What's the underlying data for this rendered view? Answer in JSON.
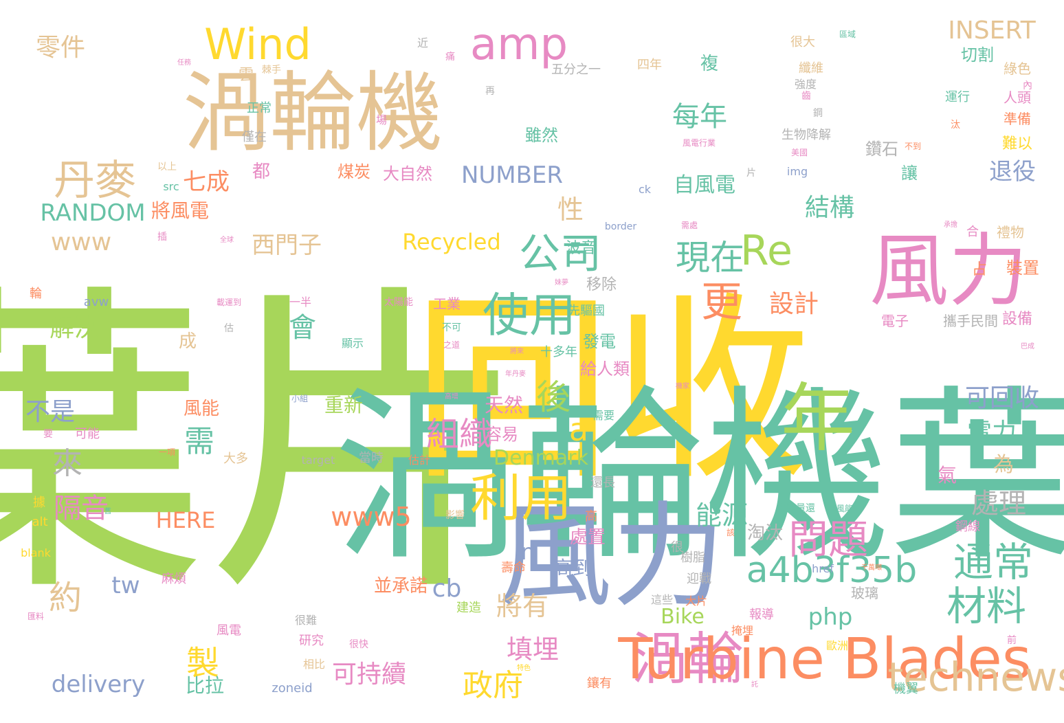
{
  "palette": {
    "green": "#a7d65a",
    "teal": "#66c2a5",
    "yellow": "#ffd92f",
    "orange": "#fc8d62",
    "blue": "#8da0cb",
    "pink": "#e78ac3",
    "tan": "#e5c494",
    "gray": "#b3b3b3"
  },
  "words": [
    {
      "text": "葉片",
      "color": "green"
    },
    {
      "text": "回收",
      "color": "yellow"
    },
    {
      "text": "渦輪機葉片",
      "color": "teal"
    },
    {
      "text": "渦輪機",
      "color": "tan"
    },
    {
      "text": "年",
      "color": "green"
    },
    {
      "text": "風力",
      "color": "blue"
    },
    {
      "text": "風力",
      "color": "pink"
    },
    {
      "text": "渦輪",
      "color": "pink"
    },
    {
      "text": "Turbine Blades",
      "color": "orange"
    },
    {
      "text": "Wind",
      "color": "yellow"
    },
    {
      "text": "amp",
      "color": "pink"
    },
    {
      "text": "丹麥",
      "color": "tan"
    },
    {
      "text": "利用",
      "color": "yellow"
    },
    {
      "text": "使用",
      "color": "teal"
    },
    {
      "text": "公司",
      "color": "teal"
    },
    {
      "text": "更",
      "color": "orange"
    },
    {
      "text": "Re",
      "color": "green"
    },
    {
      "text": "現在",
      "color": "teal"
    },
    {
      "text": "問題",
      "color": "pink"
    },
    {
      "text": "材料",
      "color": "teal"
    },
    {
      "text": "通常",
      "color": "teal"
    },
    {
      "text": "technews",
      "color": "tan"
    },
    {
      "text": "政府",
      "color": "yellow"
    },
    {
      "text": "製",
      "color": "yellow"
    },
    {
      "text": "約",
      "color": "tan"
    },
    {
      "text": "後",
      "color": "green"
    },
    {
      "text": "組織",
      "color": "pink"
    },
    {
      "text": "a",
      "color": "yellow"
    },
    {
      "text": "a4b3f35b",
      "color": "teal"
    },
    {
      "text": "www5",
      "color": "orange"
    },
    {
      "text": "www",
      "color": "tan"
    },
    {
      "text": "INSERT",
      "color": "tan"
    },
    {
      "text": "RANDOM",
      "color": "teal"
    },
    {
      "text": "NUMBER",
      "color": "blue"
    },
    {
      "text": "delivery",
      "color": "blue"
    },
    {
      "text": "Recycled",
      "color": "yellow"
    },
    {
      "text": "Denmark",
      "color": "green"
    },
    {
      "text": "HERE",
      "color": "orange"
    },
    {
      "text": "php",
      "color": "teal"
    },
    {
      "text": "tw",
      "color": "blue"
    },
    {
      "text": "cb",
      "color": "blue"
    },
    {
      "text": "n",
      "color": "blue"
    },
    {
      "text": "Bike",
      "color": "green"
    },
    {
      "text": "重新",
      "color": "green"
    },
    {
      "text": "零件",
      "color": "tan"
    },
    {
      "text": "解決",
      "color": "green"
    },
    {
      "text": "不是",
      "color": "blue"
    },
    {
      "text": "來",
      "color": "gray"
    },
    {
      "text": "需",
      "color": "teal"
    },
    {
      "text": "會",
      "color": "teal"
    },
    {
      "text": "性",
      "color": "tan"
    },
    {
      "text": "每年",
      "color": "teal"
    },
    {
      "text": "結構",
      "color": "teal"
    },
    {
      "text": "退役",
      "color": "blue"
    },
    {
      "text": "可回收",
      "color": "blue"
    },
    {
      "text": "電力",
      "color": "teal"
    },
    {
      "text": "處理",
      "color": "gray"
    },
    {
      "text": "能源",
      "color": "teal"
    },
    {
      "text": "將有",
      "color": "tan"
    },
    {
      "text": "填埋",
      "color": "pink"
    },
    {
      "text": "可持續",
      "color": "pink"
    },
    {
      "text": "西門子",
      "color": "tan"
    },
    {
      "text": "自風電",
      "color": "teal"
    },
    {
      "text": "煤炭",
      "color": "orange"
    },
    {
      "text": "大自然",
      "color": "pink"
    },
    {
      "text": "都",
      "color": "pink"
    },
    {
      "text": "七成",
      "color": "orange"
    },
    {
      "text": "雖然",
      "color": "teal"
    },
    {
      "text": "複",
      "color": "teal"
    },
    {
      "text": "設計",
      "color": "orange"
    },
    {
      "text": "天然",
      "color": "pink"
    },
    {
      "text": "容易",
      "color": "pink"
    },
    {
      "text": "高到",
      "color": "blue"
    },
    {
      "text": "並承諾",
      "color": "orange"
    },
    {
      "text": "比拉",
      "color": "teal"
    },
    {
      "text": "發電",
      "color": "teal"
    },
    {
      "text": "給人類",
      "color": "pink"
    },
    {
      "text": "成",
      "color": "tan"
    },
    {
      "text": "隔音",
      "color": "pink"
    },
    {
      "text": "為",
      "color": "tan"
    },
    {
      "text": "氣",
      "color": "pink"
    },
    {
      "text": "淘汰",
      "color": "gray"
    },
    {
      "text": "切割",
      "color": "teal"
    },
    {
      "text": "綠色",
      "color": "tan"
    },
    {
      "text": "將風電",
      "color": "orange"
    },
    {
      "text": "風能",
      "color": "orange"
    },
    {
      "text": "處置",
      "color": "pink"
    },
    {
      "text": "波音",
      "color": "teal"
    },
    {
      "text": "移除",
      "color": "gray"
    },
    {
      "text": "工業",
      "color": "pink"
    },
    {
      "text": "先驅國",
      "color": "teal"
    },
    {
      "text": "設備",
      "color": "pink"
    },
    {
      "text": "攜手民間",
      "color": "gray"
    },
    {
      "text": "電子",
      "color": "pink"
    },
    {
      "text": "占",
      "color": "orange"
    },
    {
      "text": "裝置",
      "color": "orange"
    },
    {
      "text": "禮物",
      "color": "tan"
    },
    {
      "text": "難以",
      "color": "yellow"
    },
    {
      "text": "準備",
      "color": "orange"
    },
    {
      "text": "人頭",
      "color": "pink"
    },
    {
      "text": "讓",
      "color": "teal"
    },
    {
      "text": "鑽石",
      "color": "gray"
    },
    {
      "text": "生物降解",
      "color": "gray"
    },
    {
      "text": "鋼線",
      "color": "pink"
    },
    {
      "text": "玻璃",
      "color": "gray"
    },
    {
      "text": "迎戰",
      "color": "gray"
    },
    {
      "text": "樹脂",
      "color": "gray"
    },
    {
      "text": "壽命",
      "color": "orange"
    },
    {
      "text": "報導",
      "color": "pink"
    },
    {
      "text": "大片",
      "color": "orange"
    },
    {
      "text": "這些",
      "color": "gray"
    },
    {
      "text": "建造",
      "color": "green"
    },
    {
      "text": "掩埋",
      "color": "orange"
    },
    {
      "text": "麻煩",
      "color": "pink"
    },
    {
      "text": "很難",
      "color": "gray"
    },
    {
      "text": "風電",
      "color": "pink"
    },
    {
      "text": "研究",
      "color": "pink"
    },
    {
      "text": "很快",
      "color": "pink"
    },
    {
      "text": "相比",
      "color": "tan"
    },
    {
      "text": "鑲有",
      "color": "orange"
    },
    {
      "text": "機翼",
      "color": "teal"
    },
    {
      "text": "還長",
      "color": "gray"
    },
    {
      "text": "十多年",
      "color": "teal"
    },
    {
      "text": "四年",
      "color": "tan"
    },
    {
      "text": "強度",
      "color": "gray"
    },
    {
      "text": "纖維",
      "color": "tan"
    },
    {
      "text": "很大",
      "color": "tan"
    },
    {
      "text": "運行",
      "color": "teal"
    },
    {
      "text": "正常",
      "color": "teal"
    },
    {
      "text": "僅在",
      "color": "gray"
    },
    {
      "text": "以上",
      "color": "tan"
    },
    {
      "text": "棘手",
      "color": "tan"
    },
    {
      "text": "五分之一",
      "color": "gray"
    },
    {
      "text": "一半",
      "color": "pink"
    },
    {
      "text": "太陽能",
      "color": "pink"
    },
    {
      "text": "載運到",
      "color": "pink"
    },
    {
      "text": "顯示",
      "color": "teal"
    },
    {
      "text": "之道",
      "color": "pink"
    },
    {
      "text": "不可",
      "color": "teal"
    },
    {
      "text": "可能",
      "color": "pink"
    },
    {
      "text": "大多",
      "color": "tan"
    },
    {
      "text": "target",
      "color": "gray"
    },
    {
      "text": "當時",
      "color": "gray"
    },
    {
      "text": "估計",
      "color": "orange"
    },
    {
      "text": "影響",
      "color": "tan"
    },
    {
      "text": "需要",
      "color": "teal"
    },
    {
      "text": "不到",
      "color": "orange"
    },
    {
      "text": "美國",
      "color": "pink"
    },
    {
      "text": "風電行業",
      "color": "pink"
    },
    {
      "text": "需處",
      "color": "pink"
    },
    {
      "text": "border",
      "color": "blue"
    },
    {
      "text": "avw",
      "color": "blue"
    },
    {
      "text": "src",
      "color": "teal"
    },
    {
      "text": "ck",
      "color": "blue"
    },
    {
      "text": "img",
      "color": "blue"
    },
    {
      "text": "alt",
      "color": "yellow"
    },
    {
      "text": "blank",
      "color": "yellow"
    },
    {
      "text": "zoneid",
      "color": "blue"
    },
    {
      "text": "href",
      "color": "blue"
    },
    {
      "text": "歐洲",
      "color": "yellow"
    },
    {
      "text": "區域",
      "color": "teal"
    },
    {
      "text": "安裝量還",
      "color": "teal"
    },
    {
      "text": "自風能",
      "color": "teal"
    },
    {
      "text": "該",
      "color": "orange"
    },
    {
      "text": "很",
      "color": "gray"
    },
    {
      "text": "高",
      "color": "orange"
    },
    {
      "text": "據",
      "color": "yellow"
    },
    {
      "text": "輪",
      "color": "orange"
    },
    {
      "text": "近",
      "color": "gray"
    },
    {
      "text": "痛",
      "color": "pink"
    },
    {
      "text": "雲",
      "color": "tan"
    },
    {
      "text": "場",
      "color": "pink"
    },
    {
      "text": "插",
      "color": "pink"
    },
    {
      "text": "再",
      "color": "gray"
    },
    {
      "text": "合",
      "color": "pink"
    },
    {
      "text": "汰",
      "color": "orange"
    },
    {
      "text": "內",
      "color": "pink"
    },
    {
      "text": "片",
      "color": "gray"
    },
    {
      "text": "前",
      "color": "pink"
    },
    {
      "text": "鋼",
      "color": "gray"
    },
    {
      "text": "齒",
      "color": "pink"
    },
    {
      "text": "估",
      "color": "gray"
    },
    {
      "text": "要",
      "color": "pink"
    },
    {
      "text": "一項",
      "color": "orange"
    },
    {
      "text": "小組",
      "color": "blue"
    },
    {
      "text": "任務",
      "color": "pink"
    },
    {
      "text": "全球",
      "color": "pink"
    },
    {
      "text": "妹夢",
      "color": "pink"
    },
    {
      "text": "承擔",
      "color": "pink"
    },
    {
      "text": "巴成",
      "color": "pink"
    },
    {
      "text": "機家",
      "color": "pink"
    },
    {
      "text": "將來",
      "color": "pink"
    },
    {
      "text": "年丹麥",
      "color": "pink"
    },
    {
      "text": "高增",
      "color": "pink"
    },
    {
      "text": "舊",
      "color": "teal"
    },
    {
      "text": "匯料",
      "color": "pink"
    },
    {
      "text": "千萬噸",
      "color": "orange"
    },
    {
      "text": "特色",
      "color": "yellow"
    },
    {
      "text": "託",
      "color": "pink"
    }
  ]
}
